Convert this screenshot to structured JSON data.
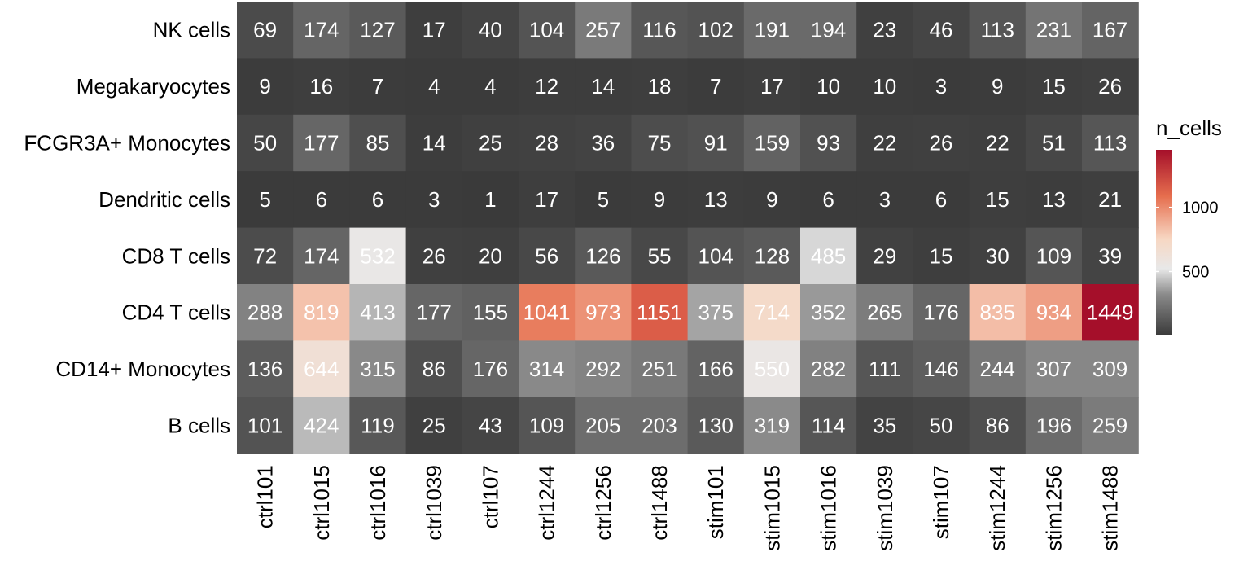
{
  "chart_data": {
    "type": "heatmap",
    "rows": [
      "NK cells",
      "Megakaryocytes",
      "FCGR3A+ Monocytes",
      "Dendritic cells",
      "CD8 T cells",
      "CD4 T cells",
      "CD14+ Monocytes",
      "B cells"
    ],
    "columns": [
      "ctrl101",
      "ctrl1015",
      "ctrl1016",
      "ctrl1039",
      "ctrl107",
      "ctrl1244",
      "ctrl1256",
      "ctrl1488",
      "stim101",
      "stim1015",
      "stim1016",
      "stim1039",
      "stim107",
      "stim1244",
      "stim1256",
      "stim1488"
    ],
    "values": [
      [
        69,
        174,
        127,
        17,
        40,
        104,
        257,
        116,
        102,
        191,
        194,
        23,
        46,
        113,
        231,
        167
      ],
      [
        9,
        16,
        7,
        4,
        4,
        12,
        14,
        18,
        7,
        17,
        10,
        10,
        3,
        9,
        15,
        26
      ],
      [
        50,
        177,
        85,
        14,
        25,
        28,
        36,
        75,
        91,
        159,
        93,
        22,
        26,
        22,
        51,
        113
      ],
      [
        5,
        6,
        6,
        3,
        1,
        17,
        5,
        9,
        13,
        9,
        6,
        3,
        6,
        15,
        13,
        21
      ],
      [
        72,
        174,
        532,
        26,
        20,
        56,
        126,
        55,
        104,
        128,
        485,
        29,
        15,
        30,
        109,
        39
      ],
      [
        288,
        819,
        413,
        177,
        155,
        1041,
        973,
        1151,
        375,
        714,
        352,
        265,
        176,
        835,
        934,
        1449
      ],
      [
        136,
        644,
        315,
        86,
        176,
        314,
        292,
        251,
        166,
        550,
        282,
        111,
        146,
        244,
        307,
        309
      ],
      [
        101,
        424,
        119,
        25,
        43,
        109,
        205,
        203,
        130,
        319,
        114,
        35,
        50,
        86,
        196,
        259
      ]
    ],
    "legend": {
      "title": "n_cells",
      "ticks": [
        500,
        1000
      ],
      "range": [
        1,
        1449
      ],
      "placement": "right"
    },
    "colors": {
      "low": "#3a3a3a",
      "mid": "#e6e6e6",
      "high_light": "#f7d7c3",
      "high_mid": "#e66e4e",
      "high": "#a50f2a"
    }
  }
}
